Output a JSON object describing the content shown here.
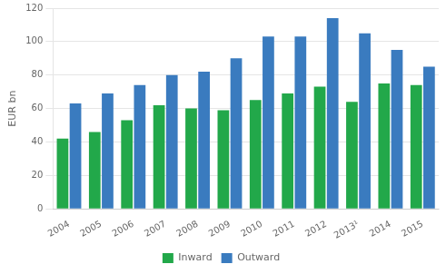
{
  "chart_data": {
    "type": "bar",
    "ylabel": "EUR bn",
    "categories": [
      "2004",
      "2005",
      "2006",
      "2007",
      "2008",
      "2009",
      "2010",
      "2011",
      "2012",
      "2013¹",
      "2014",
      "2015"
    ],
    "series": [
      {
        "name": "Inward",
        "color": "#22a84a",
        "values": [
          42,
          46,
          53,
          62,
          60,
          59,
          65,
          69,
          73,
          64,
          75,
          74
        ]
      },
      {
        "name": "Outward",
        "color": "#3a7bbf",
        "values": [
          63,
          69,
          74,
          80,
          82,
          90,
          103,
          103,
          114,
          105,
          95,
          85
        ]
      }
    ],
    "ylim": [
      0,
      120
    ],
    "yticks": [
      0,
      20,
      40,
      60,
      80,
      100,
      120
    ],
    "grid": true,
    "legend": "bottom"
  }
}
